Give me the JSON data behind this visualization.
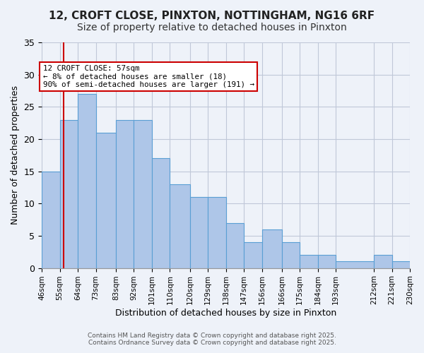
{
  "title1": "12, CROFT CLOSE, PINXTON, NOTTINGHAM, NG16 6RF",
  "title2": "Size of property relative to detached houses in Pinxton",
  "xlabel": "Distribution of detached houses by size in Pinxton",
  "ylabel": "Number of detached properties",
  "bar_values": [
    15,
    23,
    27,
    21,
    23,
    23,
    17,
    13,
    11,
    11,
    7,
    4,
    6,
    4,
    2,
    2,
    1,
    2,
    1
  ],
  "bin_edges": [
    46,
    55,
    64,
    73,
    83,
    92,
    101,
    110,
    120,
    129,
    138,
    147,
    156,
    166,
    175,
    184,
    193,
    212,
    221,
    230
  ],
  "x_labels": [
    "46sqm",
    "55sqm",
    "64sqm",
    "73sqm",
    "83sqm",
    "92sqm",
    "101sqm",
    "110sqm",
    "120sqm",
    "129sqm",
    "138sqm",
    "147sqm",
    "156sqm",
    "166sqm",
    "175sqm",
    "184sqm",
    "193sqm",
    "212sqm",
    "221sqm",
    "230sqm"
  ],
  "bar_color": "#aec6e8",
  "bar_edge_color": "#5a9fd4",
  "bg_color": "#eef2f9",
  "red_line_x": 57,
  "ylim": [
    0,
    35
  ],
  "yticks": [
    0,
    5,
    10,
    15,
    20,
    25,
    30,
    35
  ],
  "annotation_title": "12 CROFT CLOSE: 57sqm",
  "annotation_line2": "← 8% of detached houses are smaller (18)",
  "annotation_line3": "90% of semi-detached houses are larger (191) →",
  "annotation_box_color": "#ffffff",
  "annotation_border_color": "#cc0000",
  "footer_line1": "Contains HM Land Registry data © Crown copyright and database right 2025.",
  "footer_line2": "Contains Ordnance Survey data © Crown copyright and database right 2025.",
  "title_fontsize": 11,
  "subtitle_fontsize": 10
}
